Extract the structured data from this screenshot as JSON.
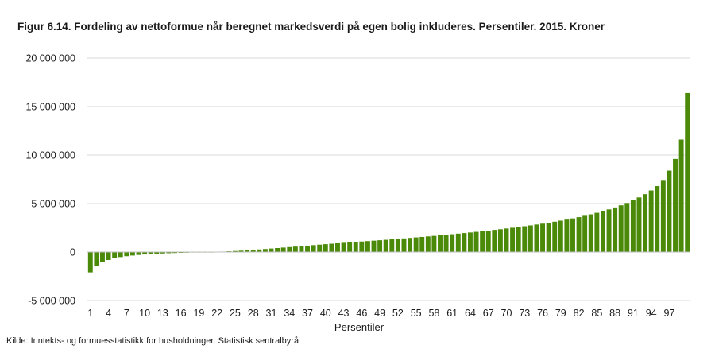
{
  "figure": {
    "title": "Figur 6.14. Fordeling av nettoformue når beregnet markedsverdi på egen bolig inkluderes. Persentiler. 2015. Kroner",
    "source": "Kilde: Inntekts- og formuesstatistikk for husholdninger. Statistisk sentralbyrå."
  },
  "colors": {
    "bar": "#4a8a08",
    "grid": "#d9d9d9",
    "axis": "#bfbfbf"
  },
  "chart_data": {
    "type": "bar",
    "xlabel": "Persentiler",
    "ylabel": "",
    "ylim": [
      -5000000,
      20000000
    ],
    "y_ticks": [
      -5000000,
      0,
      5000000,
      10000000,
      15000000,
      20000000
    ],
    "y_tick_labels": [
      "-5 000 000",
      "0",
      "5 000 000",
      "10 000 000",
      "15 000 000",
      "20 000 000"
    ],
    "x_tick_labels": [
      "1",
      "4",
      "7",
      "10",
      "13",
      "16",
      "19",
      "22",
      "25",
      "28",
      "31",
      "34",
      "37",
      "40",
      "43",
      "46",
      "49",
      "52",
      "55",
      "58",
      "61",
      "64",
      "67",
      "70",
      "73",
      "76",
      "79",
      "82",
      "85",
      "88",
      "91",
      "94",
      "97"
    ],
    "grid": true,
    "legend": "none",
    "categories": [
      "1",
      "2",
      "3",
      "4",
      "5",
      "6",
      "7",
      "8",
      "9",
      "10",
      "11",
      "12",
      "13",
      "14",
      "15",
      "16",
      "17",
      "18",
      "19",
      "20",
      "21",
      "22",
      "23",
      "24",
      "25",
      "26",
      "27",
      "28",
      "29",
      "30",
      "31",
      "32",
      "33",
      "34",
      "35",
      "36",
      "37",
      "38",
      "39",
      "40",
      "41",
      "42",
      "43",
      "44",
      "45",
      "46",
      "47",
      "48",
      "49",
      "50",
      "51",
      "52",
      "53",
      "54",
      "55",
      "56",
      "57",
      "58",
      "59",
      "60",
      "61",
      "62",
      "63",
      "64",
      "65",
      "66",
      "67",
      "68",
      "69",
      "70",
      "71",
      "72",
      "73",
      "74",
      "75",
      "76",
      "77",
      "78",
      "79",
      "80",
      "81",
      "82",
      "83",
      "84",
      "85",
      "86",
      "87",
      "88",
      "89",
      "90",
      "91",
      "92",
      "93",
      "94",
      "95",
      "96",
      "97",
      "98",
      "99",
      "100"
    ],
    "values": [
      -2100000,
      -1400000,
      -1050000,
      -820000,
      -650000,
      -520000,
      -430000,
      -360000,
      -300000,
      -250000,
      -210000,
      -175000,
      -145000,
      -120000,
      -100000,
      -80000,
      -62000,
      -45000,
      -30000,
      -15000,
      0,
      20000,
      45000,
      75000,
      105000,
      140000,
      180000,
      220000,
      265000,
      310000,
      360000,
      410000,
      460000,
      510000,
      560000,
      610000,
      660000,
      710000,
      760000,
      810000,
      860000,
      905000,
      950000,
      995000,
      1040000,
      1085000,
      1130000,
      1175000,
      1220000,
      1265000,
      1310000,
      1360000,
      1410000,
      1460000,
      1510000,
      1560000,
      1615000,
      1670000,
      1725000,
      1780000,
      1840000,
      1900000,
      1960000,
      2020000,
      2085000,
      2150000,
      2215000,
      2285000,
      2355000,
      2430000,
      2505000,
      2585000,
      2665000,
      2750000,
      2840000,
      2930000,
      3030000,
      3130000,
      3240000,
      3350000,
      3470000,
      3600000,
      3740000,
      3890000,
      4050000,
      4220000,
      4400000,
      4600000,
      4820000,
      5060000,
      5330000,
      5630000,
      5970000,
      6350000,
      6800000,
      7350000,
      8400000,
      9600000,
      11600000,
      16400000
    ]
  }
}
